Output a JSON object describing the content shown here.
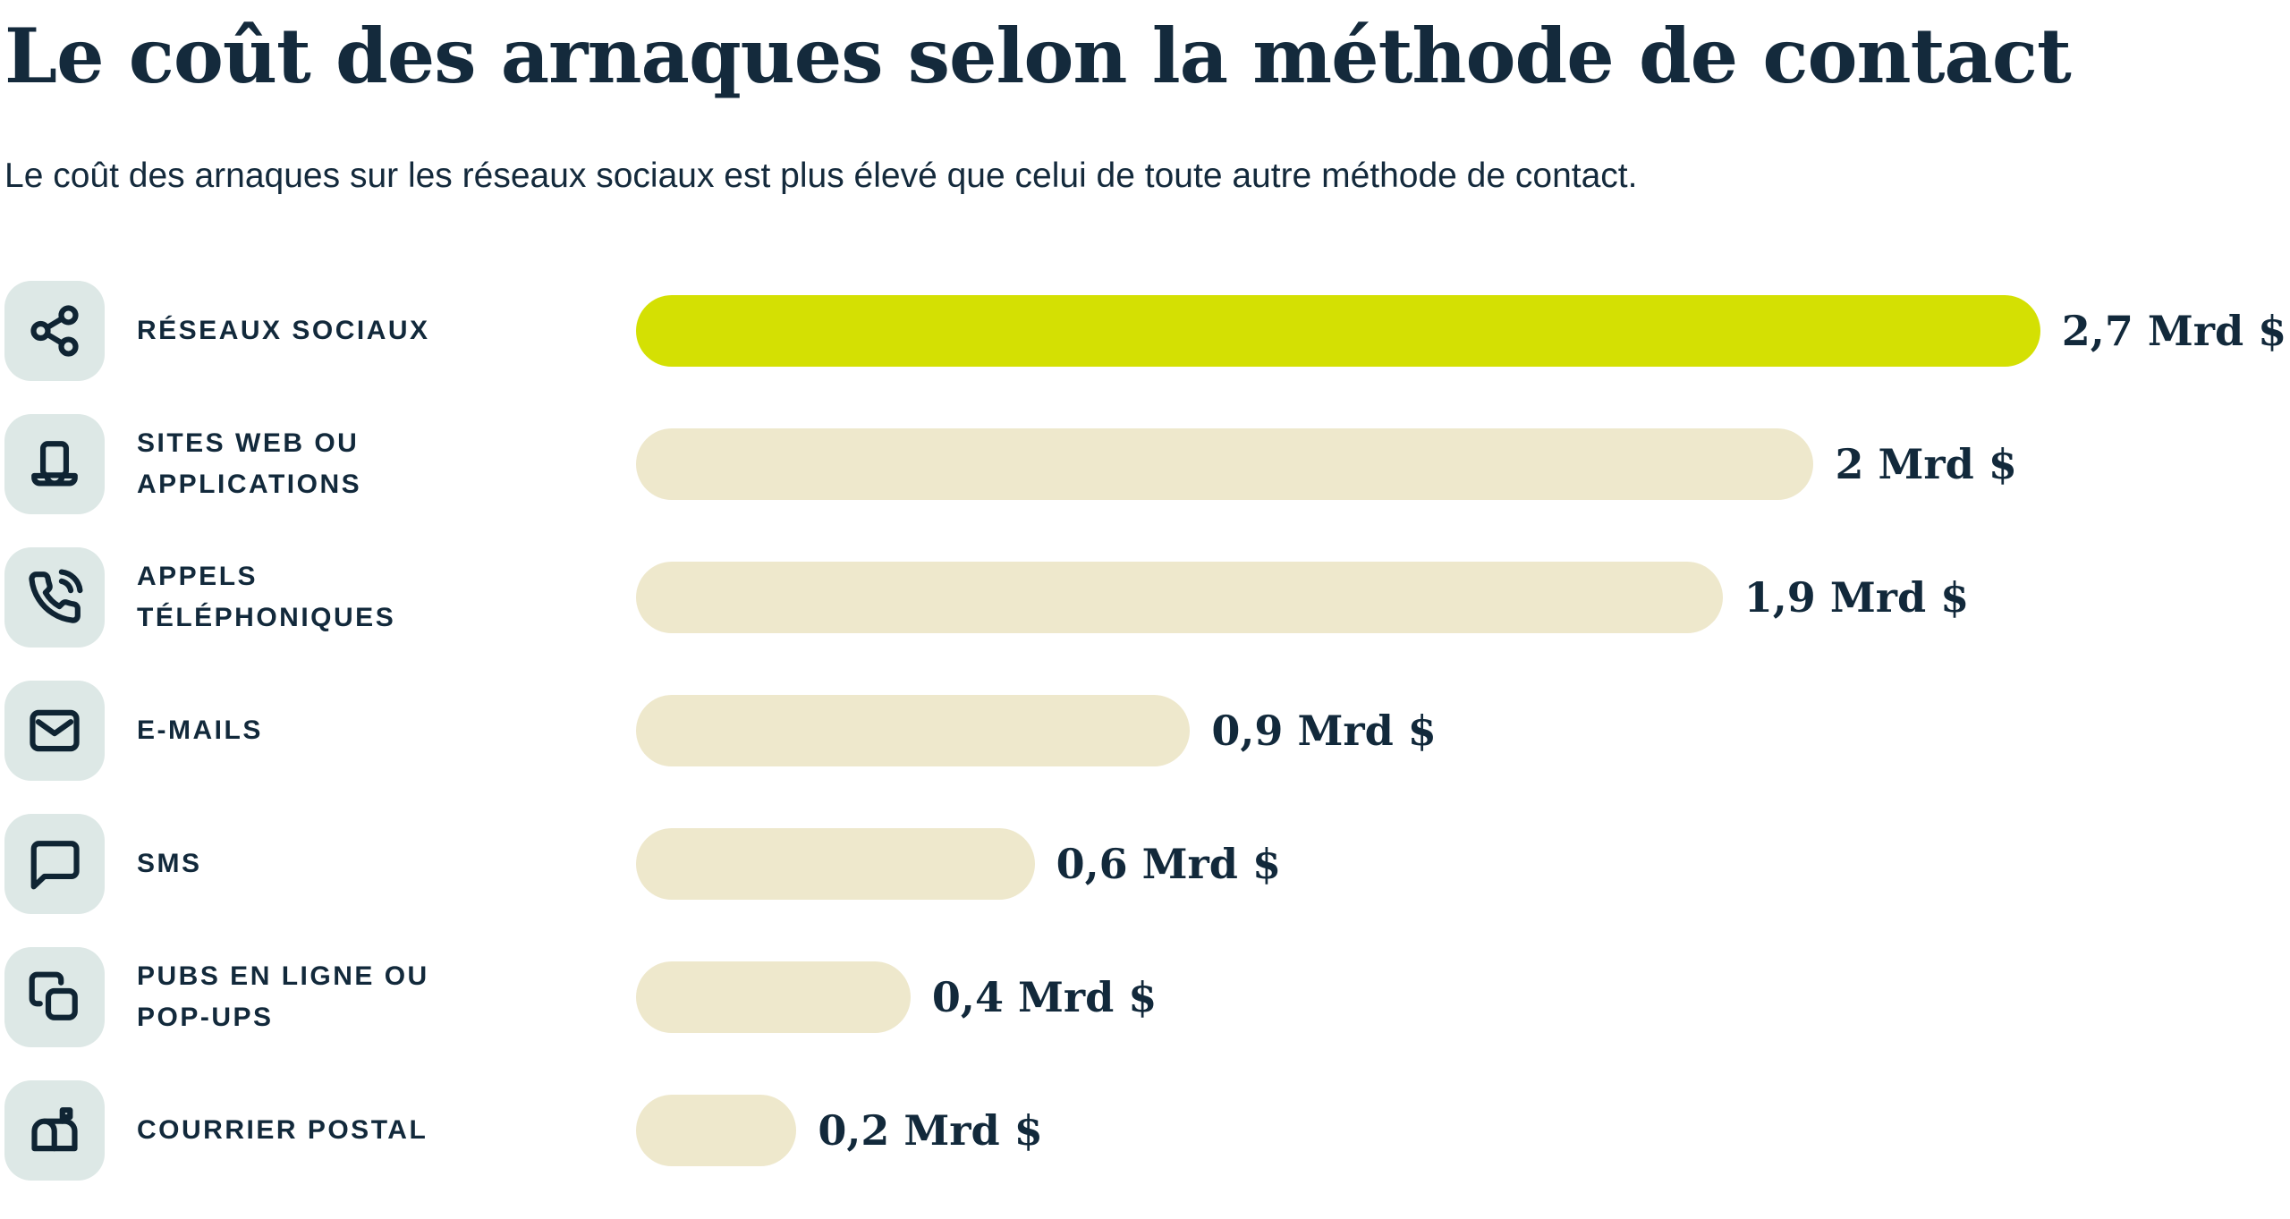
{
  "header": {
    "title": "Le coût des arnaques selon la méthode de contact",
    "subtitle": "Le coût des arnaques sur les réseaux sociaux est plus élevé que celui de toute autre méthode de contact."
  },
  "colors": {
    "text_navy": "#12293b",
    "highlight_bar_green": "#d4e003",
    "default_bar_beige": "#eee8cc",
    "icon_tile_background": "#dde8e6",
    "page_background": "#ffffff"
  },
  "chart_data": {
    "type": "bar",
    "orientation": "horizontal",
    "title": "Le coût des arnaques selon la méthode de contact",
    "subtitle": "Le coût des arnaques sur les réseaux sociaux est plus élevé que celui de toute autre méthode de contact.",
    "unit": "Mrd $",
    "grid": false,
    "legend": false,
    "xlim": [
      0,
      3.2
    ],
    "categories": [
      "RÉSEAUX SOCIAUX",
      "SITES WEB OU APPLICATIONS",
      "APPELS TÉLÉPHONIQUES",
      "E-MAILS",
      "SMS",
      "PUBS EN LIGNE OU POP-UPS",
      "COURRIER POSTAL"
    ],
    "values": [
      2.7,
      2,
      1.9,
      0.9,
      0.6,
      0.4,
      0.2
    ],
    "value_labels": [
      "2,7 Mrd $",
      "2 Mrd $",
      "1,9 Mrd $",
      "0,9 Mrd $",
      "0,6 Mrd $",
      "0,4 Mrd $",
      "0,2 Mrd $"
    ],
    "highlight_index": 0,
    "rows": [
      {
        "icon": "share",
        "label1": "RÉSEAUX SOCIAUX",
        "label2": "",
        "value": 2.7,
        "value_label": "2,7 Mrd $",
        "pct": 84.9
      },
      {
        "icon": "laptop",
        "label1": "SITES WEB OU",
        "label2": "APPLICATIONS",
        "value": 2,
        "value_label": "2 Mrd $",
        "pct": 71.2
      },
      {
        "icon": "phone-call",
        "label1": "APPELS",
        "label2": "TÉLÉPHONIQUES",
        "value": 1.9,
        "value_label": "1,9 Mrd $",
        "pct": 65.7
      },
      {
        "icon": "mail",
        "label1": "E-MAILS",
        "label2": "",
        "value": 0.9,
        "value_label": "0,9 Mrd $",
        "pct": 33.5
      },
      {
        "icon": "message-square",
        "label1": "SMS",
        "label2": "",
        "value": 0.6,
        "value_label": "0,6 Mrd $",
        "pct": 24.1
      },
      {
        "icon": "copy",
        "label1": "PUBS EN LIGNE OU",
        "label2": "POP-UPS",
        "value": 0.4,
        "value_label": "0,4 Mrd $",
        "pct": 16.6
      },
      {
        "icon": "mailbox",
        "label1": "COURRIER POSTAL",
        "label2": "",
        "value": 0.2,
        "value_label": "0,2 Mrd $",
        "pct": 9.7
      }
    ]
  }
}
